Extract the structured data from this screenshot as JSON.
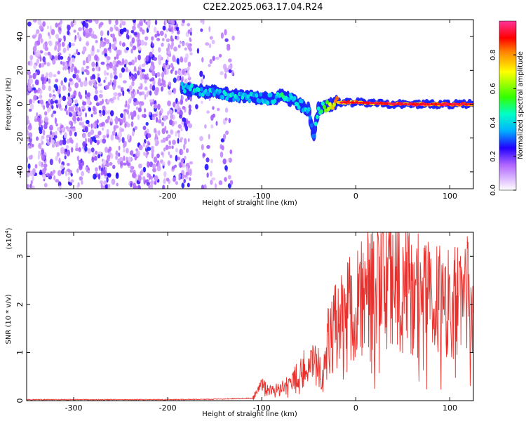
{
  "title": "C2E2.2025.063.17.04.R24",
  "chart_data": [
    {
      "type": "heatmap",
      "name": "spectrogram",
      "xlabel": "Height of straight line (km)",
      "ylabel": "Frequency (Hz)",
      "xlim": [
        -350,
        125
      ],
      "ylim": [
        -50,
        50
      ],
      "xticks": [
        -300,
        -200,
        -100,
        0,
        100
      ],
      "yticks": [
        -40,
        -20,
        0,
        20,
        40
      ],
      "colorbar": {
        "label": "Normalized spectral amplitude",
        "range": [
          0,
          1
        ],
        "ticks": [
          0.0,
          0.2,
          0.4,
          0.6,
          0.8
        ]
      },
      "signal_track": {
        "x": [
          -185,
          -170,
          -150,
          -130,
          -110,
          -90,
          -80,
          -70,
          -60,
          -50,
          -45,
          -40,
          -30,
          -20,
          0,
          50,
          125
        ],
        "y": [
          10,
          8,
          7,
          5,
          4,
          3,
          5,
          3,
          0,
          -3,
          -20,
          -3,
          -1,
          1,
          1,
          0,
          0
        ],
        "peak_amplitude": [
          0.4,
          0.45,
          0.4,
          0.45,
          0.4,
          0.4,
          0.5,
          0.45,
          0.45,
          0.4,
          0.4,
          0.5,
          0.6,
          0.85,
          0.9,
          0.95,
          0.95
        ]
      },
      "noise_region_x": [
        -350,
        -130
      ]
    },
    {
      "type": "line",
      "name": "snr",
      "xlabel": "Height of straight line (km)",
      "ylabel": "SNR (10 * v/v)",
      "scale_label": "(x10",
      "scale_exponent": "4",
      "xlim": [
        -350,
        125
      ],
      "ylim": [
        0,
        3.5
      ],
      "xticks": [
        -300,
        -200,
        -100,
        0,
        100
      ],
      "yticks": [
        0,
        1,
        2,
        3
      ],
      "color": "#e8312c",
      "series": [
        {
          "x": [
            -350,
            -200,
            -150,
            -110,
            -100,
            -90,
            -80,
            -70,
            -60,
            -50,
            -40,
            -35,
            -30,
            -20,
            -10,
            0,
            10,
            20,
            30,
            40,
            50,
            60,
            70,
            80,
            90,
            100,
            110,
            125
          ],
          "y": [
            0.02,
            0.02,
            0.03,
            0.05,
            0.3,
            0.2,
            0.25,
            0.35,
            0.6,
            0.8,
            0.7,
            0.4,
            1.2,
            1.6,
            1.8,
            2.0,
            2.2,
            2.3,
            2.6,
            2.8,
            2.4,
            2.3,
            2.1,
            2.2,
            2.0,
            2.1,
            2.1,
            2.2
          ]
        }
      ]
    }
  ]
}
